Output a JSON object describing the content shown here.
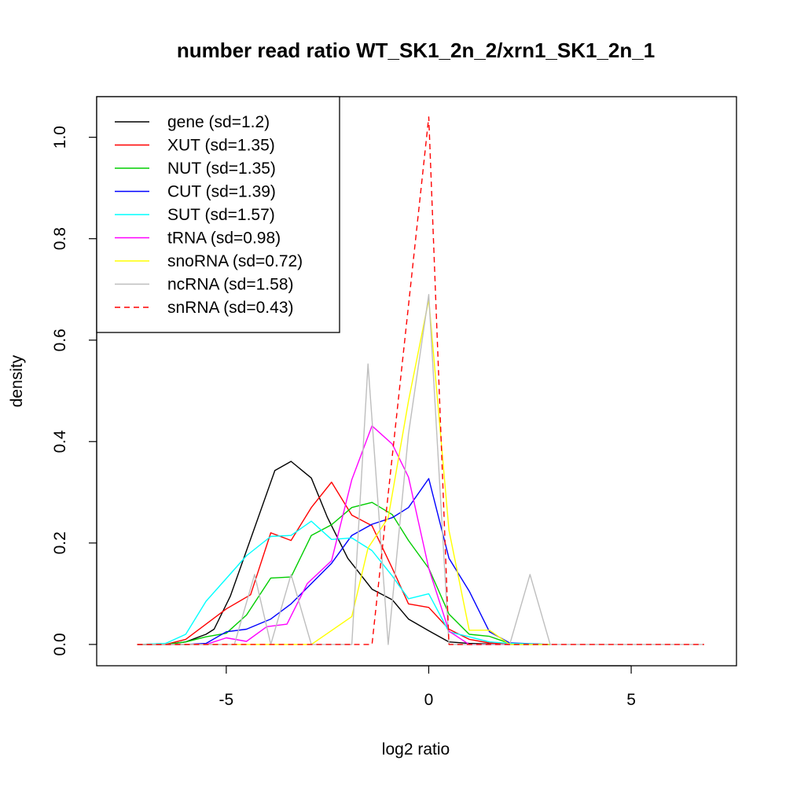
{
  "chart_data": {
    "type": "line",
    "title": "number read ratio WT_SK1_2n_2/xrn1_SK1_2n_1",
    "xlabel": "log2 ratio",
    "ylabel": "density",
    "xlim": [
      -8.2,
      7.6
    ],
    "ylim": [
      -0.042,
      1.08
    ],
    "xticks": [
      -5,
      0,
      5
    ],
    "xtick_labels": [
      "-5",
      "0",
      "5"
    ],
    "yticks": [
      0.0,
      0.2,
      0.4,
      0.6,
      0.8,
      1.0
    ],
    "ytick_labels": [
      "0.0",
      "0.2",
      "0.4",
      "0.6",
      "0.8",
      "1.0"
    ],
    "grid": false,
    "legend_position": "top-left",
    "series": [
      {
        "name": "gene (sd=1.2)",
        "color": "#000000",
        "dash": "solid",
        "x": [
          -7.2,
          -6.5,
          -6.0,
          -5.5,
          -5.3,
          -4.9,
          -4.3,
          -3.8,
          -3.4,
          -2.9,
          -2.5,
          -2.0,
          -1.4,
          -0.9,
          -0.5,
          0.0,
          0.5,
          1.0,
          1.5,
          2.0,
          3.0
        ],
        "y": [
          0.0,
          0.0,
          0.005,
          0.02,
          0.03,
          0.095,
          0.23,
          0.343,
          0.361,
          0.328,
          0.25,
          0.17,
          0.109,
          0.088,
          0.05,
          0.027,
          0.005,
          0.002,
          0.001,
          0.0,
          0.0
        ]
      },
      {
        "name": "XUT (sd=1.35)",
        "color": "#ff0000",
        "dash": "solid",
        "x": [
          -7.2,
          -6.5,
          -6.0,
          -5.5,
          -5.0,
          -4.4,
          -3.9,
          -3.4,
          -2.9,
          -2.4,
          -1.9,
          -1.4,
          -0.9,
          -0.5,
          0.0,
          0.5,
          1.0,
          1.5,
          2.0,
          3.0
        ],
        "y": [
          0.0,
          0.0,
          0.01,
          0.04,
          0.07,
          0.098,
          0.22,
          0.205,
          0.27,
          0.32,
          0.255,
          0.234,
          0.15,
          0.08,
          0.073,
          0.03,
          0.01,
          0.003,
          0.001,
          0.0
        ]
      },
      {
        "name": "NUT (sd=1.35)",
        "color": "#00cd00",
        "dash": "solid",
        "x": [
          -7.2,
          -6.5,
          -6.0,
          -5.5,
          -5.0,
          -4.5,
          -3.9,
          -3.4,
          -2.9,
          -2.4,
          -1.9,
          -1.4,
          -0.9,
          -0.5,
          0.0,
          0.5,
          1.0,
          1.5,
          2.0,
          3.0
        ],
        "y": [
          0.0,
          0.0,
          0.005,
          0.015,
          0.022,
          0.058,
          0.131,
          0.133,
          0.215,
          0.236,
          0.27,
          0.28,
          0.256,
          0.205,
          0.15,
          0.06,
          0.02,
          0.016,
          0.002,
          0.0
        ]
      },
      {
        "name": "CUT (sd=1.39)",
        "color": "#0000ff",
        "dash": "solid",
        "x": [
          -7.2,
          -6.5,
          -6.0,
          -5.5,
          -5.0,
          -4.5,
          -3.9,
          -3.4,
          -2.9,
          -2.4,
          -1.9,
          -1.4,
          -0.9,
          -0.5,
          0.0,
          0.5,
          1.0,
          1.5,
          2.0,
          3.0
        ],
        "y": [
          0.0,
          0.0,
          0.0,
          0.002,
          0.025,
          0.03,
          0.05,
          0.08,
          0.12,
          0.16,
          0.215,
          0.237,
          0.25,
          0.27,
          0.327,
          0.17,
          0.105,
          0.025,
          0.003,
          0.0
        ]
      },
      {
        "name": "SUT (sd=1.57)",
        "color": "#00ffff",
        "dash": "solid",
        "x": [
          -7.2,
          -6.5,
          -6.0,
          -5.5,
          -5.0,
          -4.5,
          -3.9,
          -3.4,
          -2.9,
          -2.4,
          -1.9,
          -1.4,
          -0.9,
          -0.5,
          0.0,
          0.5,
          1.0,
          1.5,
          2.0,
          3.0
        ],
        "y": [
          0.0,
          0.002,
          0.02,
          0.085,
          0.13,
          0.175,
          0.213,
          0.215,
          0.243,
          0.207,
          0.21,
          0.185,
          0.135,
          0.09,
          0.1,
          0.025,
          0.015,
          0.005,
          0.002,
          0.0
        ]
      },
      {
        "name": "tRNA (sd=0.98)",
        "color": "#ff00ff",
        "dash": "solid",
        "x": [
          -7.2,
          -5.5,
          -5.0,
          -4.5,
          -4.0,
          -3.5,
          -3.0,
          -2.4,
          -1.9,
          -1.4,
          -0.9,
          -0.5,
          0.0,
          0.5,
          1.0,
          2.0
        ],
        "y": [
          0.0,
          0.0,
          0.013,
          0.006,
          0.035,
          0.04,
          0.12,
          0.165,
          0.325,
          0.431,
          0.395,
          0.33,
          0.15,
          0.026,
          0.0,
          0.0
        ]
      },
      {
        "name": "snoRNA (sd=0.72)",
        "color": "#ffff00",
        "dash": "solid",
        "x": [
          -7.2,
          -2.9,
          -1.9,
          -1.5,
          -1.0,
          -0.5,
          0.0,
          0.5,
          1.0,
          1.5,
          2.0,
          3.0
        ],
        "y": [
          0.0,
          0.0,
          0.055,
          0.19,
          0.25,
          0.48,
          0.68,
          0.225,
          0.028,
          0.028,
          0.0,
          0.0
        ]
      },
      {
        "name": "ncRNA (sd=1.58)",
        "color": "#bebebe",
        "dash": "solid",
        "x": [
          -7.2,
          -4.8,
          -4.3,
          -3.9,
          -3.4,
          -2.9,
          -1.9,
          -1.5,
          -1.0,
          -0.5,
          0.0,
          0.5,
          1.0,
          2.0,
          2.5,
          3.0,
          6.8
        ],
        "y": [
          0.0,
          0.0,
          0.138,
          0.0,
          0.138,
          0.0,
          0.0,
          0.553,
          0.0,
          0.415,
          0.69,
          0.0,
          0.0,
          0.0,
          0.138,
          0.0,
          0.0
        ]
      },
      {
        "name": "snRNA (sd=0.43)",
        "color": "#ff0000",
        "dash": "dashed",
        "x": [
          -7.2,
          -1.4,
          0.0,
          0.5,
          6.8
        ],
        "y": [
          0.0,
          0.0,
          1.04,
          0.0,
          0.0
        ]
      }
    ]
  }
}
